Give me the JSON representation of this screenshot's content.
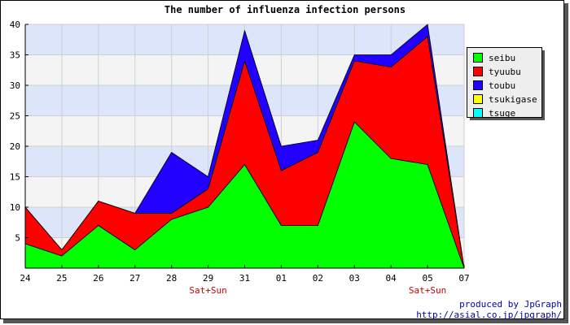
{
  "chart_data": {
    "type": "area",
    "stacked": true,
    "title": "The number of influenza infection persons",
    "categories": [
      "24",
      "25",
      "26",
      "27",
      "28",
      "29",
      "31",
      "01",
      "02",
      "03",
      "04",
      "05",
      "07"
    ],
    "sublabels": [
      "",
      "",
      "",
      "",
      "",
      "Sat+Sun",
      "",
      "",
      "",
      "",
      "",
      "Sat+Sun",
      ""
    ],
    "ylim": [
      0,
      40
    ],
    "yticks": [
      5,
      10,
      15,
      20,
      25,
      30,
      35,
      40
    ],
    "grid": true,
    "legend_position": "right",
    "series": [
      {
        "name": "seibu",
        "color": "#00ff00",
        "values": [
          4,
          2,
          7,
          3,
          8,
          10,
          17,
          7,
          7,
          24,
          18,
          17,
          0
        ]
      },
      {
        "name": "tyuubu",
        "color": "#ff0000",
        "values": [
          6,
          1,
          4,
          6,
          1,
          3,
          17,
          9,
          12,
          10,
          15,
          21,
          0
        ]
      },
      {
        "name": "toubu",
        "color": "#2200ff",
        "values": [
          0,
          0,
          0,
          0,
          10,
          2,
          5,
          4,
          2,
          1,
          2,
          2,
          0
        ]
      },
      {
        "name": "tsukigase",
        "color": "#ffff00",
        "values": [
          0,
          0,
          0,
          0,
          0,
          0,
          0,
          0,
          0,
          0,
          0,
          0,
          0
        ]
      },
      {
        "name": "tsuge",
        "color": "#00ffff",
        "values": [
          0,
          0,
          0,
          0,
          0,
          0,
          0,
          0,
          0,
          0,
          0,
          0,
          0
        ]
      }
    ]
  },
  "credits": {
    "line1": "produced by JpGraph",
    "line2": "http://asial.co.jp/jpgraph/"
  },
  "colors": {
    "band_blue": "#dde5fb",
    "band_light": "#f4f4f4",
    "sublabel": "#cc0000",
    "credit": "#0000aa"
  }
}
